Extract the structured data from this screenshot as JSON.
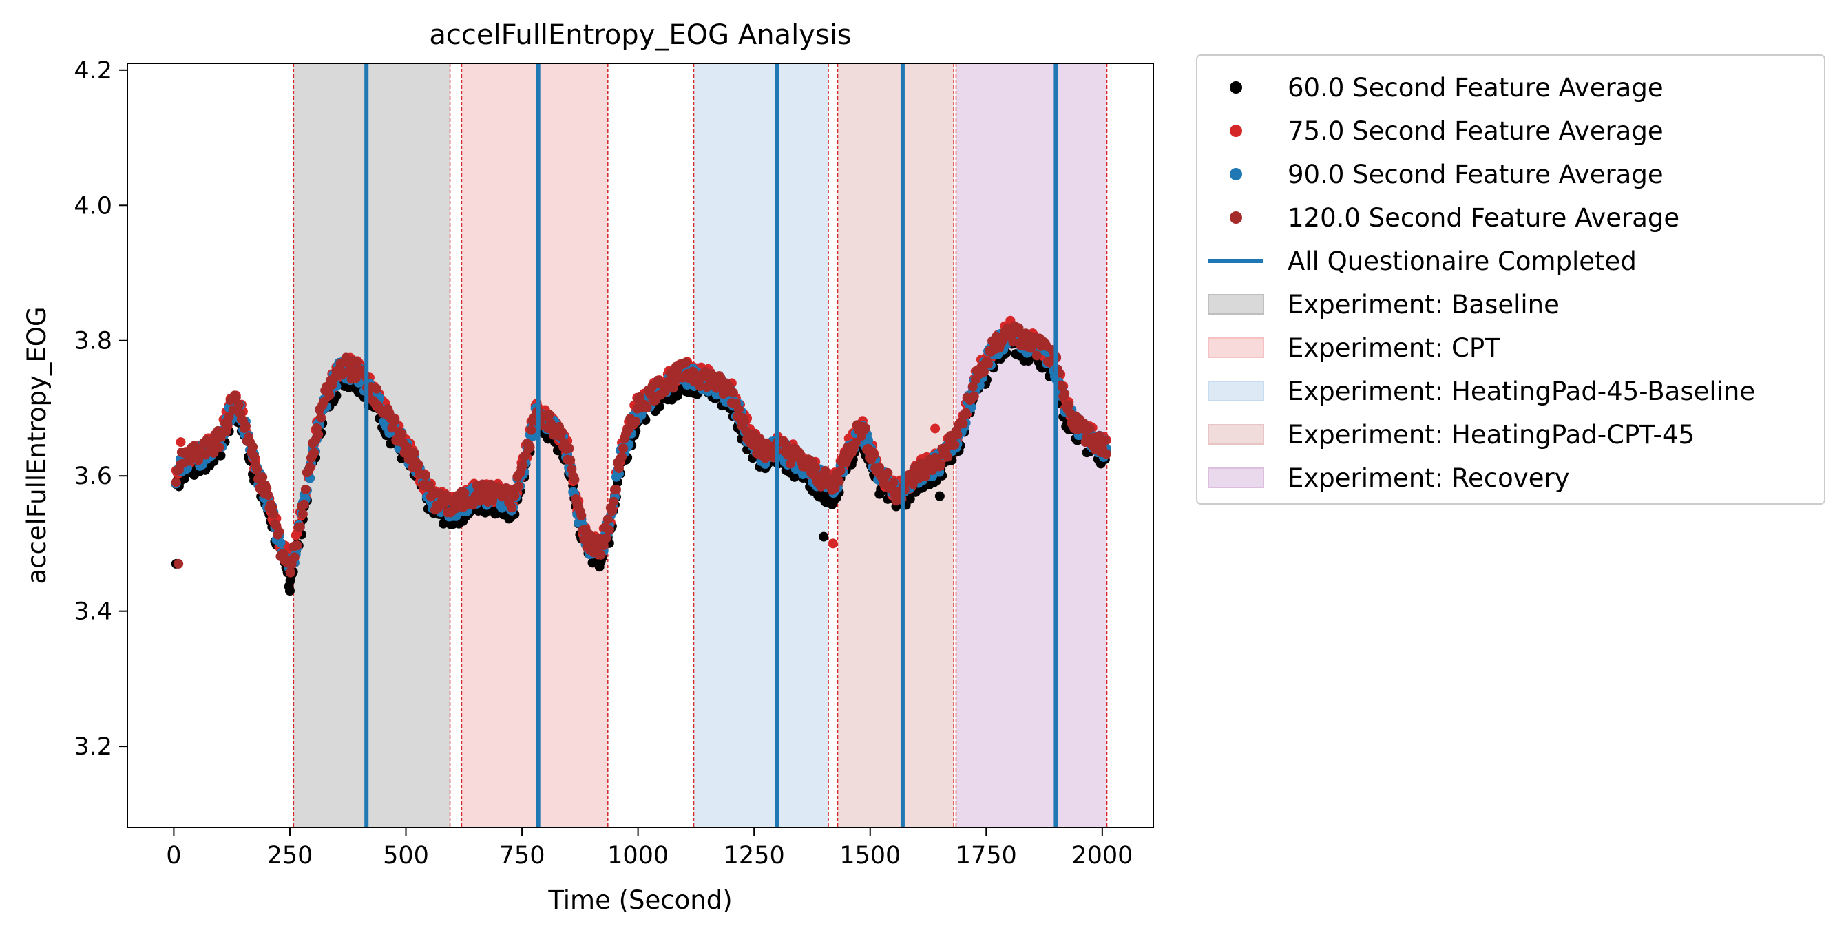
{
  "chart_data": {
    "type": "scatter",
    "title": "accelFullEntropy_EOG Analysis",
    "xlabel": "Time (Second)",
    "ylabel": "accelFullEntropy_EOG",
    "xlim": [
      -100,
      2110
    ],
    "ylim": [
      3.08,
      4.21
    ],
    "xticks": [
      0,
      250,
      500,
      750,
      1000,
      1250,
      1500,
      1750,
      2000
    ],
    "yticks": [
      3.2,
      3.4,
      3.6,
      3.8,
      4.0,
      4.2
    ],
    "xtick_labels": [
      "0",
      "250",
      "500",
      "750",
      "1000",
      "1250",
      "1500",
      "1750",
      "2000"
    ],
    "ytick_labels": [
      "3.2",
      "3.4",
      "3.6",
      "3.8",
      "4.0",
      "4.2"
    ],
    "grid": false,
    "legend_position": "outside-right-top",
    "series": [
      {
        "name": "60.0 Second Feature Average",
        "color": "#000000",
        "offset": -0.012
      },
      {
        "name": "75.0 Second Feature Average",
        "color": "#d62728",
        "offset": 0.006
      },
      {
        "name": "90.0 Second Feature Average",
        "color": "#1f77b4",
        "offset": 0.0
      },
      {
        "name": "120.0 Second Feature Average",
        "color": "#a52a2a",
        "offset": 0.004
      }
    ],
    "trend": [
      [
        5,
        3.6
      ],
      [
        20,
        3.62
      ],
      [
        60,
        3.63
      ],
      [
        100,
        3.65
      ],
      [
        130,
        3.71
      ],
      [
        150,
        3.68
      ],
      [
        180,
        3.6
      ],
      [
        210,
        3.55
      ],
      [
        230,
        3.49
      ],
      [
        250,
        3.46
      ],
      [
        265,
        3.5
      ],
      [
        290,
        3.6
      ],
      [
        320,
        3.7
      ],
      [
        360,
        3.76
      ],
      [
        400,
        3.75
      ],
      [
        430,
        3.72
      ],
      [
        470,
        3.67
      ],
      [
        500,
        3.64
      ],
      [
        530,
        3.6
      ],
      [
        560,
        3.56
      ],
      [
        600,
        3.55
      ],
      [
        650,
        3.57
      ],
      [
        700,
        3.57
      ],
      [
        730,
        3.56
      ],
      [
        760,
        3.63
      ],
      [
        780,
        3.69
      ],
      [
        800,
        3.68
      ],
      [
        820,
        3.67
      ],
      [
        850,
        3.63
      ],
      [
        870,
        3.55
      ],
      [
        890,
        3.5
      ],
      [
        920,
        3.49
      ],
      [
        940,
        3.53
      ],
      [
        960,
        3.62
      ],
      [
        1000,
        3.7
      ],
      [
        1050,
        3.73
      ],
      [
        1100,
        3.75
      ],
      [
        1150,
        3.74
      ],
      [
        1200,
        3.72
      ],
      [
        1230,
        3.67
      ],
      [
        1270,
        3.63
      ],
      [
        1300,
        3.64
      ],
      [
        1350,
        3.62
      ],
      [
        1400,
        3.59
      ],
      [
        1420,
        3.58
      ],
      [
        1450,
        3.63
      ],
      [
        1480,
        3.67
      ],
      [
        1520,
        3.6
      ],
      [
        1560,
        3.57
      ],
      [
        1600,
        3.6
      ],
      [
        1650,
        3.62
      ],
      [
        1690,
        3.66
      ],
      [
        1730,
        3.74
      ],
      [
        1770,
        3.79
      ],
      [
        1800,
        3.81
      ],
      [
        1850,
        3.79
      ],
      [
        1880,
        3.78
      ],
      [
        1900,
        3.76
      ],
      [
        1920,
        3.7
      ],
      [
        1950,
        3.67
      ],
      [
        1980,
        3.65
      ],
      [
        2010,
        3.64
      ]
    ],
    "outliers": [
      {
        "series": 0,
        "x": 5,
        "y": 3.47
      },
      {
        "series": 3,
        "x": 10,
        "y": 3.47
      },
      {
        "series": 1,
        "x": 15,
        "y": 3.65
      },
      {
        "series": 0,
        "x": 250,
        "y": 3.43
      },
      {
        "series": 0,
        "x": 1400,
        "y": 3.51
      },
      {
        "series": 1,
        "x": 1420,
        "y": 3.5
      },
      {
        "series": 1,
        "x": 1640,
        "y": 3.67
      },
      {
        "series": 0,
        "x": 1650,
        "y": 3.57
      }
    ],
    "questionnaire_completed": {
      "name": "All Questionaire Completed",
      "color": "#1f77b4",
      "x": [
        415,
        785,
        1300,
        1570,
        1900
      ]
    },
    "experiments": [
      {
        "name": "Experiment: Baseline",
        "color": "#bfbfbf",
        "start": 258,
        "end": 595
      },
      {
        "name": "Experiment: CPT",
        "color": "#f4c2c2",
        "start": 620,
        "end": 935
      },
      {
        "name": "Experiment: HeatingPad-45-Baseline",
        "color": "#c6dbef",
        "start": 1120,
        "end": 1410
      },
      {
        "name": "Experiment: HeatingPad-CPT-45",
        "color": "#e8c4c4",
        "start": 1430,
        "end": 1680
      },
      {
        "name": "Experiment: Recovery",
        "color": "#dcbedf",
        "start": 1685,
        "end": 2010
      }
    ],
    "boundary_line_color": "#d62728"
  }
}
